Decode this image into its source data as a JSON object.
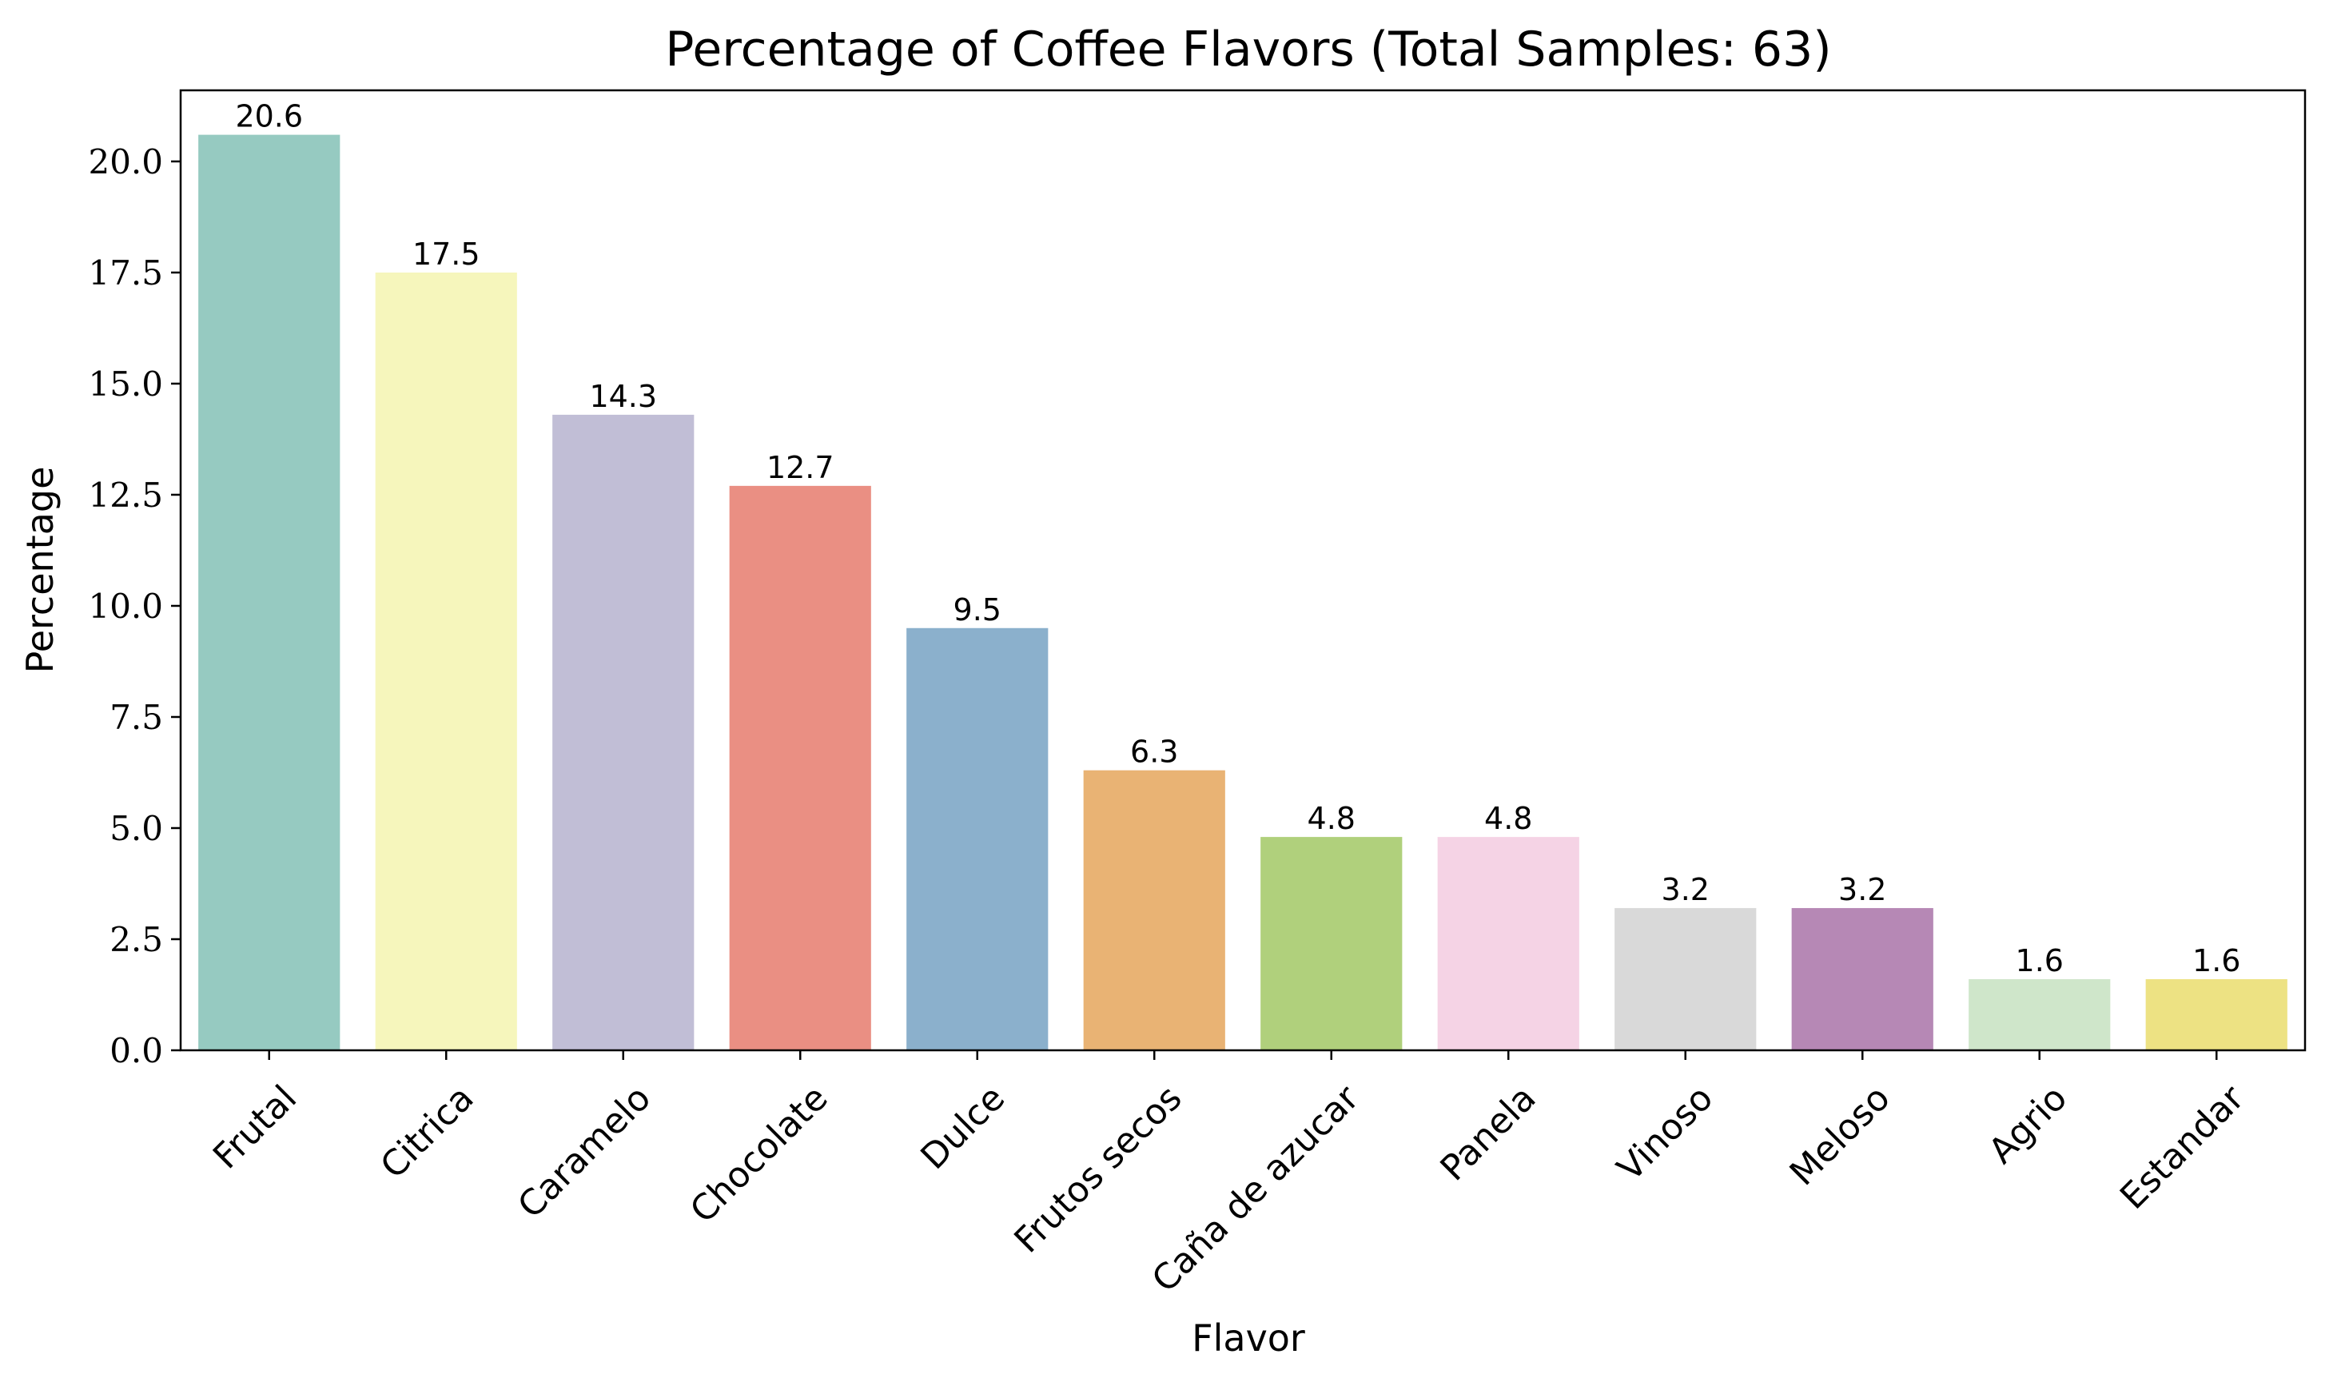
{
  "chart_data": {
    "type": "bar",
    "title": "Percentage of Coffee Flavors (Total Samples: 63)",
    "xlabel": "Flavor",
    "ylabel": "Percentage",
    "ylim": [
      0,
      21.6
    ],
    "yticks": [
      0.0,
      2.5,
      5.0,
      7.5,
      10.0,
      12.5,
      15.0,
      17.5,
      20.0
    ],
    "ytick_labels": [
      "0.0",
      "2.5",
      "5.0",
      "7.5",
      "10.0",
      "12.5",
      "15.0",
      "17.5",
      "20.0"
    ],
    "categories": [
      "Frutal",
      "Citrica",
      "Caramelo",
      "Chocolate",
      "Dulce",
      "Frutos secos",
      "Caña de azucar",
      "Panela",
      "Vinoso",
      "Meloso",
      "Agrio",
      "Estandar"
    ],
    "values": [
      20.6,
      17.5,
      14.3,
      12.7,
      9.5,
      6.3,
      4.8,
      4.8,
      3.2,
      3.2,
      1.6,
      1.6
    ],
    "value_labels": [
      "20.6",
      "17.5",
      "14.3",
      "12.7",
      "9.5",
      "6.3",
      "4.8",
      "4.8",
      "3.2",
      "3.2",
      "1.6",
      "1.6"
    ],
    "colors": [
      "#96cac1",
      "#f6f6bc",
      "#c1bed6",
      "#ea8f83",
      "#8bb0cc",
      "#e9b374",
      "#b0d07c",
      "#f5d3e5",
      "#d9d9d9",
      "#b688b5",
      "#cfe6ca",
      "#ede283"
    ],
    "grid": false,
    "legend": "none"
  }
}
